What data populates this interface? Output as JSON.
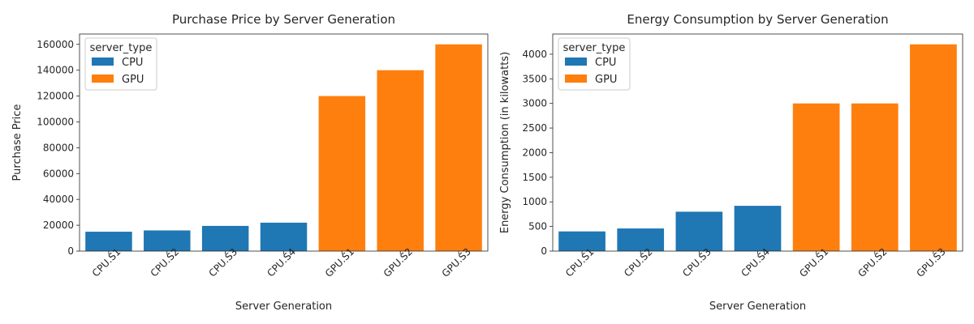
{
  "chart_data": [
    {
      "type": "bar",
      "title": "Purchase Price by Server Generation",
      "xlabel": "Server Generation",
      "ylabel": "Purchase Price",
      "categories": [
        "CPU.S1",
        "CPU.S2",
        "CPU.S3",
        "CPU.S4",
        "GPU.S1",
        "GPU.S2",
        "GPU.S3"
      ],
      "values": [
        15000,
        16000,
        19500,
        22000,
        120000,
        140000,
        160000
      ],
      "bar_series": [
        "CPU",
        "CPU",
        "CPU",
        "CPU",
        "GPU",
        "GPU",
        "GPU"
      ],
      "yticks": [
        0,
        20000,
        40000,
        60000,
        80000,
        100000,
        120000,
        140000,
        160000
      ],
      "ylim": [
        0,
        168000
      ],
      "grid": false,
      "legend": {
        "title": "server_type",
        "placement": "top-left",
        "entries": [
          {
            "name": "CPU",
            "color": "#1f77b4"
          },
          {
            "name": "GPU",
            "color": "#ff7f0e"
          }
        ]
      }
    },
    {
      "type": "bar",
      "title": "Energy Consumption by Server Generation",
      "xlabel": "Server Generation",
      "ylabel": "Energy Consumption (in kilowatts)",
      "categories": [
        "CPU.S1",
        "CPU.S2",
        "CPU.S3",
        "CPU.S4",
        "GPU.S1",
        "GPU.S2",
        "GPU.S3"
      ],
      "values": [
        400,
        460,
        800,
        920,
        3000,
        3000,
        4200
      ],
      "bar_series": [
        "CPU",
        "CPU",
        "CPU",
        "CPU",
        "GPU",
        "GPU",
        "GPU"
      ],
      "yticks": [
        0,
        500,
        1000,
        1500,
        2000,
        2500,
        3000,
        3500,
        4000
      ],
      "ylim": [
        0,
        4410
      ],
      "grid": false,
      "legend": {
        "title": "server_type",
        "placement": "top-left",
        "entries": [
          {
            "name": "CPU",
            "color": "#1f77b4"
          },
          {
            "name": "GPU",
            "color": "#ff7f0e"
          }
        ]
      }
    }
  ]
}
